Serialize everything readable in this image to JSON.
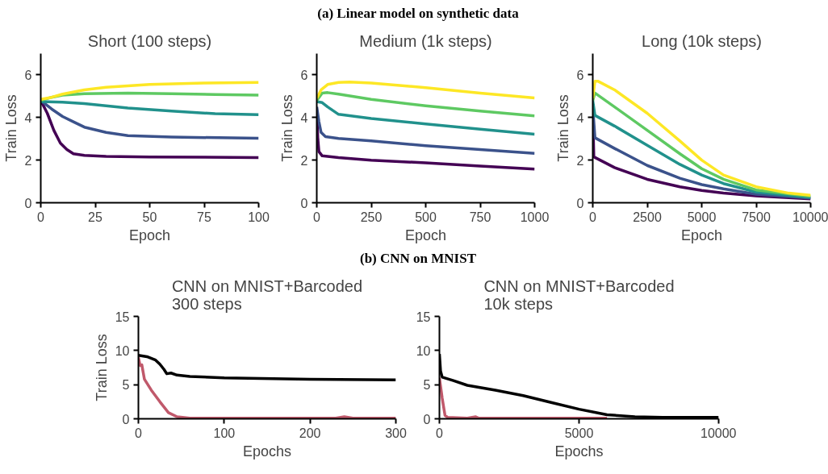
{
  "chart_data": [
    {
      "type": "line",
      "title": "Short (100 steps)",
      "xlabel": "Epoch",
      "ylabel": "Train Loss",
      "annotations": [
        "(a) Linear model on synthetic data"
      ],
      "xlim": [
        0,
        100
      ],
      "ylim": [
        0,
        7
      ],
      "xticks": [
        0,
        25,
        50,
        75,
        100
      ],
      "yticks": [
        0,
        2,
        4,
        6
      ],
      "grid": false,
      "series": [
        {
          "color": "#440154",
          "x": [
            0,
            3,
            6,
            9,
            12,
            15,
            20,
            30,
            50,
            100
          ],
          "values": [
            4.8,
            4.2,
            3.4,
            2.8,
            2.5,
            2.3,
            2.22,
            2.18,
            2.15,
            2.12
          ]
        },
        {
          "color": "#3b528b",
          "x": [
            0,
            5,
            10,
            15,
            20,
            30,
            40,
            60,
            100
          ],
          "values": [
            4.8,
            4.4,
            4.05,
            3.8,
            3.55,
            3.3,
            3.15,
            3.08,
            3.03
          ]
        },
        {
          "color": "#21918c",
          "x": [
            0,
            10,
            20,
            40,
            60,
            80,
            100
          ],
          "values": [
            4.75,
            4.72,
            4.65,
            4.45,
            4.3,
            4.18,
            4.13
          ]
        },
        {
          "color": "#5ec962",
          "x": [
            0,
            5,
            10,
            20,
            40,
            60,
            80,
            100
          ],
          "values": [
            4.8,
            4.95,
            5.05,
            5.12,
            5.15,
            5.12,
            5.08,
            5.05
          ]
        },
        {
          "color": "#fde725",
          "x": [
            0,
            5,
            10,
            20,
            30,
            50,
            75,
            100
          ],
          "values": [
            4.85,
            4.95,
            5.1,
            5.3,
            5.42,
            5.55,
            5.62,
            5.65
          ]
        }
      ]
    },
    {
      "type": "line",
      "title": "Medium (1k steps)",
      "xlabel": "Epoch",
      "ylabel": "Train Loss",
      "xlim": [
        0,
        1000
      ],
      "ylim": [
        0,
        7
      ],
      "xticks": [
        0,
        250,
        500,
        750,
        1000
      ],
      "yticks": [
        0,
        2,
        4,
        6
      ],
      "grid": false,
      "series": [
        {
          "color": "#440154",
          "x": [
            0,
            5,
            10,
            25,
            100,
            250,
            500,
            750,
            1000
          ],
          "values": [
            4.3,
            3.0,
            2.4,
            2.2,
            2.12,
            2.0,
            1.87,
            1.72,
            1.58
          ]
        },
        {
          "color": "#3b528b",
          "x": [
            0,
            10,
            20,
            40,
            100,
            250,
            500,
            750,
            1000
          ],
          "values": [
            4.5,
            3.8,
            3.3,
            3.1,
            3.02,
            2.9,
            2.68,
            2.5,
            2.32
          ]
        },
        {
          "color": "#21918c",
          "x": [
            0,
            25,
            50,
            100,
            250,
            500,
            750,
            1000
          ],
          "values": [
            4.75,
            4.7,
            4.5,
            4.15,
            3.95,
            3.7,
            3.45,
            3.22
          ]
        },
        {
          "color": "#5ec962",
          "x": [
            0,
            25,
            50,
            100,
            250,
            500,
            750,
            1000
          ],
          "values": [
            4.8,
            5.15,
            5.17,
            5.1,
            4.85,
            4.55,
            4.3,
            4.08
          ]
        },
        {
          "color": "#fde725",
          "x": [
            0,
            20,
            50,
            100,
            150,
            250,
            500,
            750,
            1000
          ],
          "values": [
            4.9,
            5.3,
            5.55,
            5.65,
            5.67,
            5.62,
            5.4,
            5.15,
            4.92
          ]
        }
      ]
    },
    {
      "type": "line",
      "title": "Long (10k steps)",
      "xlabel": "Epoch",
      "ylabel": "Train Loss",
      "xlim": [
        0,
        10000
      ],
      "ylim": [
        0,
        7
      ],
      "xticks": [
        0,
        2500,
        5000,
        7500,
        10000
      ],
      "yticks": [
        0,
        2,
        4,
        6
      ],
      "grid": false,
      "series": [
        {
          "color": "#440154",
          "x": [
            0,
            50,
            1000,
            2500,
            4000,
            5000,
            6000,
            7500,
            10000
          ],
          "values": [
            4.3,
            2.15,
            1.65,
            1.1,
            0.75,
            0.58,
            0.45,
            0.32,
            0.18
          ]
        },
        {
          "color": "#3b528b",
          "x": [
            0,
            100,
            1000,
            2500,
            4000,
            5000,
            6000,
            7500,
            10000
          ],
          "values": [
            4.5,
            3.05,
            2.55,
            1.75,
            1.15,
            0.85,
            0.65,
            0.4,
            0.22
          ]
        },
        {
          "color": "#21918c",
          "x": [
            0,
            100,
            1000,
            2500,
            4000,
            5000,
            6000,
            7500,
            10000
          ],
          "values": [
            4.8,
            4.1,
            3.6,
            2.7,
            1.8,
            1.3,
            0.9,
            0.5,
            0.25
          ]
        },
        {
          "color": "#5ec962",
          "x": [
            0,
            100,
            1000,
            2500,
            4000,
            5000,
            6000,
            7500,
            10000
          ],
          "values": [
            4.8,
            5.15,
            4.5,
            3.4,
            2.3,
            1.6,
            1.1,
            0.6,
            0.3
          ]
        },
        {
          "color": "#fde725",
          "x": [
            0,
            100,
            250,
            1000,
            2500,
            4000,
            5000,
            6000,
            7500,
            9000,
            10000
          ],
          "values": [
            4.9,
            5.7,
            5.7,
            5.3,
            4.2,
            2.9,
            2.0,
            1.3,
            0.75,
            0.45,
            0.35
          ]
        }
      ]
    },
    {
      "type": "line",
      "title": "CNN on MNIST+Barcoded\n300 steps",
      "xlabel": "Epochs",
      "ylabel": "Train Loss",
      "annotations": [
        "(b) CNN on MNIST"
      ],
      "xlim": [
        0,
        300
      ],
      "ylim": [
        0,
        15
      ],
      "xticks": [
        0,
        100,
        200,
        300
      ],
      "yticks": [
        0,
        5,
        10,
        15
      ],
      "grid": false,
      "series": [
        {
          "color": "#000000",
          "x": [
            0,
            10,
            20,
            25,
            30,
            33,
            38,
            45,
            60,
            100,
            200,
            300
          ],
          "values": [
            9.3,
            9.1,
            8.6,
            8.0,
            7.2,
            6.6,
            6.7,
            6.4,
            6.2,
            6.0,
            5.8,
            5.7
          ]
        },
        {
          "color": "#c0596b",
          "x": [
            0,
            2,
            4,
            7,
            15,
            25,
            35,
            45,
            60,
            100,
            230,
            240,
            250,
            300
          ],
          "values": [
            9.0,
            7.8,
            7.9,
            5.8,
            4.2,
            2.5,
            0.9,
            0.3,
            0.1,
            0.1,
            0.1,
            0.3,
            0.1,
            0.1
          ]
        }
      ]
    },
    {
      "type": "line",
      "title": "CNN on MNIST+Barcoded\n10k steps",
      "xlabel": "Epochs",
      "xlim": [
        0,
        10000
      ],
      "ylim": [
        0,
        15
      ],
      "xticks": [
        0,
        5000,
        10000
      ],
      "yticks": [
        0,
        5,
        10,
        15
      ],
      "grid": false,
      "series": [
        {
          "color": "#000000",
          "x": [
            0,
            40,
            100,
            500,
            1000,
            2000,
            3000,
            4000,
            5000,
            6000,
            7000,
            8000,
            10000
          ],
          "values": [
            9.5,
            7.0,
            6.1,
            5.6,
            4.9,
            4.2,
            3.4,
            2.4,
            1.4,
            0.6,
            0.3,
            0.2,
            0.2
          ]
        },
        {
          "color": "#c0596b",
          "x": [
            0,
            100,
            200,
            300,
            1000,
            1300,
            1400,
            6000
          ],
          "values": [
            6.0,
            3.0,
            0.5,
            0.2,
            0.1,
            0.3,
            0.1,
            0.1
          ]
        }
      ]
    }
  ]
}
